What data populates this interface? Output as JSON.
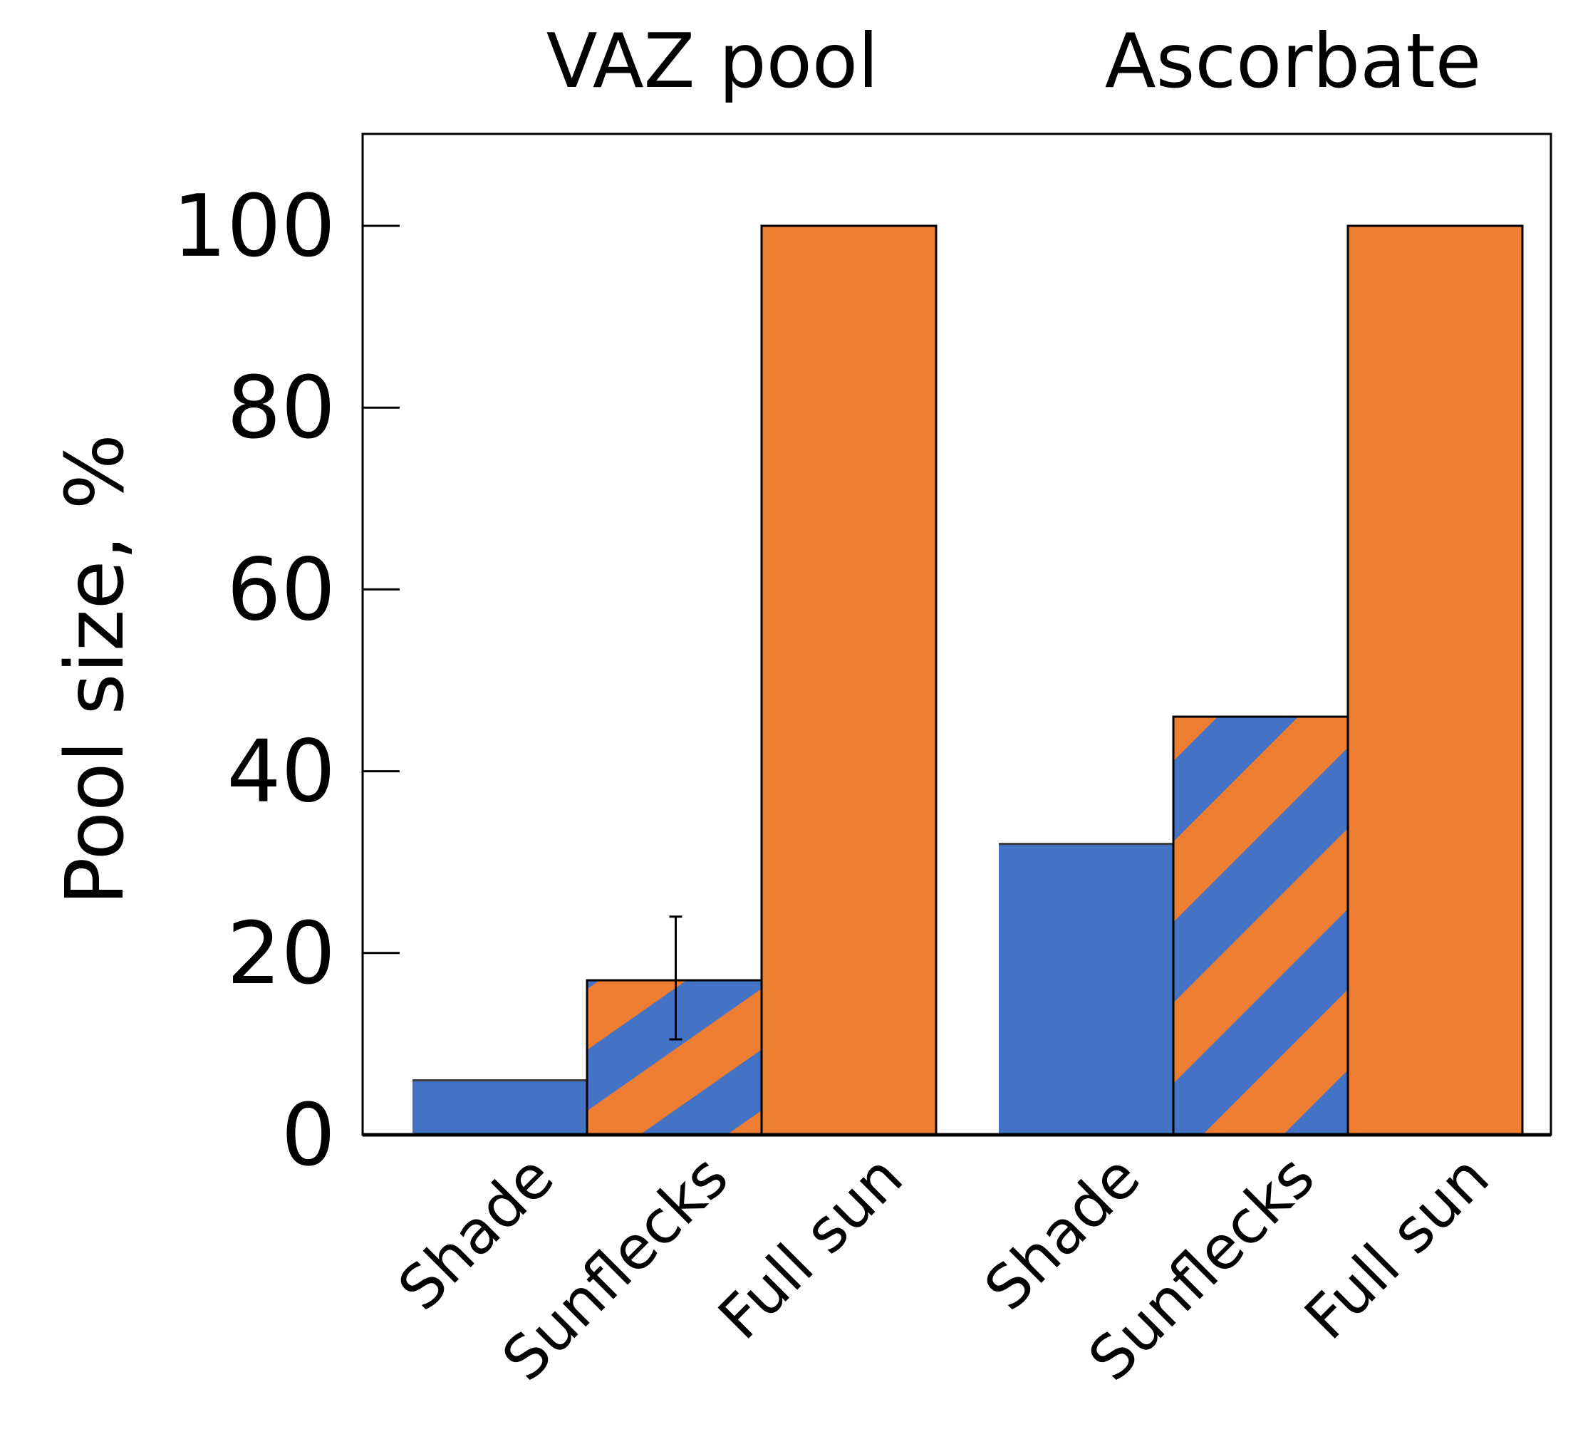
{
  "chart_data": {
    "type": "bar",
    "title": "",
    "ylabel": "Pool size, %",
    "xlabel": "",
    "ylim": [
      0,
      110
    ],
    "yticks": [
      0,
      20,
      40,
      60,
      80,
      100
    ],
    "grid": false,
    "groups": [
      {
        "title": "VAZ pool",
        "bars": [
          {
            "category": "Shade",
            "value": 6,
            "fill": "solid-blue"
          },
          {
            "category": "Sunflecks",
            "value": 17,
            "fill": "striped",
            "error": [
              10.5,
              24
            ]
          },
          {
            "category": "Full sun",
            "value": 100,
            "fill": "solid-orange"
          }
        ]
      },
      {
        "title": "Ascorbate",
        "bars": [
          {
            "category": "Shade",
            "value": 32,
            "fill": "solid-blue"
          },
          {
            "category": "Sunflecks",
            "value": 46,
            "fill": "striped"
          },
          {
            "category": "Full sun",
            "value": 100,
            "fill": "solid-orange"
          }
        ]
      }
    ]
  },
  "colors": {
    "blue": "#4472c4",
    "orange": "#ed7d31",
    "axis": "#000000"
  }
}
